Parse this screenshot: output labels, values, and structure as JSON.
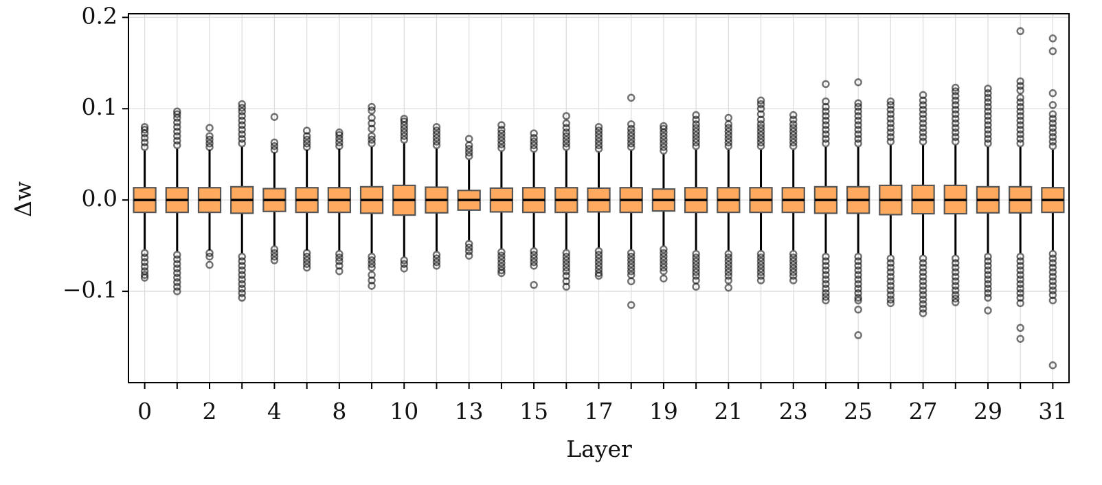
{
  "chart_data": {
    "type": "box",
    "x_label": "Layer",
    "y_label": "Δw",
    "categories": [
      "0",
      null,
      "2",
      null,
      "4",
      null,
      "8",
      null,
      "10",
      null,
      "13",
      null,
      "15",
      null,
      "17",
      null,
      "19",
      null,
      "21",
      null,
      "23",
      null,
      "25",
      null,
      "27",
      null,
      "29",
      null,
      "31"
    ],
    "ylim": [
      -0.2,
      0.204
    ],
    "yticks": [
      {
        "value": -0.1,
        "label": "−0.1"
      },
      {
        "value": 0,
        "label": "0.0"
      },
      0.1,
      0.2
    ],
    "grid": true,
    "color": "#ffaa5e",
    "edge_color": "#555555",
    "flier_color": "#000000",
    "boxes": [
      {
        "whislo": -0.054,
        "q1": -0.0135,
        "med": 0,
        "q3": 0.0135,
        "whishi": 0.054,
        "fliers": [
          0.058,
          0.063,
          0.068,
          0.073,
          0.077,
          0.08,
          -0.058,
          -0.063,
          -0.068,
          -0.073,
          -0.078,
          -0.082,
          -0.085
        ]
      },
      {
        "whislo": -0.056,
        "q1": -0.0135,
        "med": 0,
        "q3": 0.0135,
        "whishi": 0.056,
        "fliers": [
          0.06,
          0.065,
          0.07,
          0.075,
          0.08,
          0.085,
          0.09,
          0.094,
          0.097,
          -0.06,
          -0.065,
          -0.07,
          -0.075,
          -0.08,
          -0.085,
          -0.09,
          -0.095,
          -0.1
        ]
      },
      {
        "whislo": -0.055,
        "q1": -0.0135,
        "med": 0,
        "q3": 0.0135,
        "whishi": 0.055,
        "fliers": [
          0.058,
          0.062,
          0.066,
          0.07,
          0.079,
          -0.058,
          -0.062,
          -0.071
        ]
      },
      {
        "whislo": -0.058,
        "q1": -0.0145,
        "med": 0,
        "q3": 0.0145,
        "whishi": 0.058,
        "fliers": [
          0.062,
          0.067,
          0.072,
          0.077,
          0.082,
          0.087,
          0.092,
          0.097,
          0.101,
          0.105,
          -0.062,
          -0.067,
          -0.072,
          -0.077,
          -0.082,
          -0.087,
          -0.092,
          -0.097,
          -0.102,
          -0.107
        ]
      },
      {
        "whislo": -0.05,
        "q1": -0.0125,
        "med": 0,
        "q3": 0.0125,
        "whishi": 0.052,
        "fliers": [
          0.055,
          0.059,
          0.063,
          0.091,
          -0.054,
          -0.058,
          -0.062,
          -0.066
        ]
      },
      {
        "whislo": -0.055,
        "q1": -0.0135,
        "med": 0,
        "q3": 0.0135,
        "whishi": 0.055,
        "fliers": [
          0.058,
          0.062,
          0.066,
          0.07,
          0.076,
          -0.058,
          -0.062,
          -0.066,
          -0.07,
          -0.074
        ]
      },
      {
        "whislo": -0.055,
        "q1": -0.0135,
        "med": 0,
        "q3": 0.0135,
        "whishi": 0.056,
        "fliers": [
          0.059,
          0.063,
          0.067,
          0.071,
          0.074,
          -0.059,
          -0.063,
          -0.067,
          -0.072,
          -0.078
        ]
      },
      {
        "whislo": -0.058,
        "q1": -0.0145,
        "med": 0,
        "q3": 0.0145,
        "whishi": 0.058,
        "fliers": [
          0.062,
          0.066,
          0.07,
          0.078,
          0.084,
          0.09,
          0.098,
          0.102,
          -0.062,
          -0.066,
          -0.07,
          -0.074,
          -0.082,
          -0.088,
          -0.094
        ]
      },
      {
        "whislo": -0.062,
        "q1": -0.0165,
        "med": 0,
        "q3": 0.016,
        "whishi": 0.062,
        "fliers": [
          0.066,
          0.07,
          0.074,
          0.078,
          0.082,
          0.086,
          0.089,
          -0.066,
          -0.07,
          -0.075
        ]
      },
      {
        "whislo": -0.056,
        "q1": -0.014,
        "med": 0,
        "q3": 0.014,
        "whishi": 0.056,
        "fliers": [
          0.06,
          0.064,
          0.068,
          0.072,
          0.076,
          0.08,
          -0.06,
          -0.064,
          -0.068,
          -0.072
        ]
      },
      {
        "whislo": -0.044,
        "q1": -0.011,
        "med": 0,
        "q3": 0.0105,
        "whishi": 0.044,
        "fliers": [
          0.048,
          0.052,
          0.056,
          0.06,
          0.067,
          -0.048,
          -0.052,
          -0.056,
          -0.061
        ]
      },
      {
        "whislo": -0.053,
        "q1": -0.013,
        "med": 0,
        "q3": 0.013,
        "whishi": 0.053,
        "fliers": [
          0.057,
          0.061,
          0.065,
          0.069,
          0.073,
          0.077,
          0.082,
          -0.057,
          -0.061,
          -0.065,
          -0.069,
          -0.073,
          -0.077,
          -0.08
        ]
      },
      {
        "whislo": -0.052,
        "q1": -0.0135,
        "med": 0,
        "q3": 0.0135,
        "whishi": 0.052,
        "fliers": [
          0.056,
          0.06,
          0.064,
          0.068,
          0.073,
          -0.056,
          -0.06,
          -0.064,
          -0.068,
          -0.072,
          -0.093
        ]
      },
      {
        "whislo": -0.054,
        "q1": -0.0135,
        "med": 0,
        "q3": 0.0135,
        "whishi": 0.054,
        "fliers": [
          0.058,
          0.062,
          0.066,
          0.07,
          0.074,
          0.079,
          0.084,
          0.092,
          -0.058,
          -0.062,
          -0.066,
          -0.07,
          -0.074,
          -0.078,
          -0.083,
          -0.089,
          -0.095
        ]
      },
      {
        "whislo": -0.052,
        "q1": -0.013,
        "med": 0,
        "q3": 0.013,
        "whishi": 0.052,
        "fliers": [
          0.056,
          0.06,
          0.064,
          0.068,
          0.072,
          0.076,
          0.08,
          -0.056,
          -0.06,
          -0.064,
          -0.068,
          -0.072,
          -0.076,
          -0.08,
          -0.083
        ]
      },
      {
        "whislo": -0.054,
        "q1": -0.0135,
        "med": 0,
        "q3": 0.0135,
        "whishi": 0.054,
        "fliers": [
          0.058,
          0.062,
          0.066,
          0.07,
          0.074,
          0.078,
          0.083,
          0.112,
          -0.058,
          -0.062,
          -0.066,
          -0.07,
          -0.074,
          -0.078,
          -0.082,
          -0.089,
          -0.115
        ]
      },
      {
        "whislo": -0.05,
        "q1": -0.012,
        "med": 0,
        "q3": 0.012,
        "whishi": 0.05,
        "fliers": [
          0.054,
          0.058,
          0.062,
          0.066,
          0.07,
          0.074,
          0.078,
          0.081,
          -0.054,
          -0.058,
          -0.062,
          -0.066,
          -0.07,
          -0.074,
          -0.078,
          -0.086
        ]
      },
      {
        "whislo": -0.055,
        "q1": -0.0135,
        "med": 0,
        "q3": 0.0135,
        "whishi": 0.055,
        "fliers": [
          0.059,
          0.063,
          0.067,
          0.071,
          0.075,
          0.079,
          0.083,
          0.088,
          0.093,
          -0.059,
          -0.063,
          -0.067,
          -0.071,
          -0.075,
          -0.079,
          -0.083,
          -0.088,
          -0.095
        ]
      },
      {
        "whislo": -0.055,
        "q1": -0.0135,
        "med": 0,
        "q3": 0.0135,
        "whishi": 0.055,
        "fliers": [
          0.059,
          0.063,
          0.067,
          0.071,
          0.075,
          0.079,
          0.083,
          0.09,
          -0.059,
          -0.063,
          -0.067,
          -0.071,
          -0.075,
          -0.079,
          -0.083,
          -0.088,
          -0.096
        ]
      },
      {
        "whislo": -0.055,
        "q1": -0.0135,
        "med": 0,
        "q3": 0.0135,
        "whishi": 0.055,
        "fliers": [
          0.059,
          0.063,
          0.067,
          0.071,
          0.075,
          0.079,
          0.083,
          0.088,
          0.094,
          0.1,
          0.105,
          0.109,
          -0.059,
          -0.063,
          -0.067,
          -0.071,
          -0.075,
          -0.079,
          -0.083,
          -0.088
        ]
      },
      {
        "whislo": -0.055,
        "q1": -0.0135,
        "med": 0,
        "q3": 0.0135,
        "whishi": 0.055,
        "fliers": [
          0.059,
          0.063,
          0.067,
          0.071,
          0.075,
          0.079,
          0.083,
          0.088,
          0.093,
          -0.059,
          -0.063,
          -0.067,
          -0.071,
          -0.075,
          -0.079,
          -0.083,
          -0.088
        ]
      },
      {
        "whislo": -0.058,
        "q1": -0.0145,
        "med": 0,
        "q3": 0.0145,
        "whishi": 0.058,
        "fliers": [
          0.062,
          0.067,
          0.072,
          0.077,
          0.082,
          0.087,
          0.092,
          0.097,
          0.102,
          0.108,
          0.127,
          -0.062,
          -0.067,
          -0.072,
          -0.077,
          -0.082,
          -0.087,
          -0.092,
          -0.097,
          -0.102,
          -0.106,
          -0.11
        ]
      },
      {
        "whislo": -0.058,
        "q1": -0.0145,
        "med": 0,
        "q3": 0.0145,
        "whishi": 0.058,
        "fliers": [
          0.062,
          0.067,
          0.072,
          0.077,
          0.082,
          0.087,
          0.092,
          0.097,
          0.102,
          0.106,
          0.129,
          -0.062,
          -0.067,
          -0.072,
          -0.077,
          -0.082,
          -0.087,
          -0.092,
          -0.097,
          -0.102,
          -0.107,
          -0.11,
          -0.12,
          -0.148
        ]
      },
      {
        "whislo": -0.06,
        "q1": -0.016,
        "med": 0,
        "q3": 0.016,
        "whishi": 0.06,
        "fliers": [
          0.064,
          0.069,
          0.074,
          0.079,
          0.084,
          0.089,
          0.094,
          0.099,
          0.104,
          0.108,
          -0.064,
          -0.069,
          -0.074,
          -0.079,
          -0.084,
          -0.089,
          -0.094,
          -0.099,
          -0.104,
          -0.109,
          -0.113
        ]
      },
      {
        "whislo": -0.06,
        "q1": -0.015,
        "med": 0,
        "q3": 0.016,
        "whishi": 0.06,
        "fliers": [
          0.064,
          0.069,
          0.074,
          0.079,
          0.084,
          0.089,
          0.094,
          0.099,
          0.104,
          0.109,
          0.115,
          -0.064,
          -0.069,
          -0.074,
          -0.079,
          -0.084,
          -0.089,
          -0.094,
          -0.099,
          -0.104,
          -0.109,
          -0.114,
          -0.119,
          -0.124
        ]
      },
      {
        "whislo": -0.06,
        "q1": -0.015,
        "med": 0,
        "q3": 0.016,
        "whishi": 0.06,
        "fliers": [
          0.064,
          0.069,
          0.074,
          0.079,
          0.084,
          0.089,
          0.094,
          0.099,
          0.104,
          0.109,
          0.114,
          0.119,
          0.123,
          -0.064,
          -0.069,
          -0.074,
          -0.079,
          -0.084,
          -0.089,
          -0.094,
          -0.099,
          -0.104,
          -0.108,
          -0.112
        ]
      },
      {
        "whislo": -0.058,
        "q1": -0.014,
        "med": 0,
        "q3": 0.0145,
        "whishi": 0.058,
        "fliers": [
          0.062,
          0.067,
          0.072,
          0.077,
          0.082,
          0.087,
          0.092,
          0.097,
          0.102,
          0.107,
          0.112,
          0.117,
          0.122,
          -0.062,
          -0.067,
          -0.072,
          -0.077,
          -0.082,
          -0.087,
          -0.092,
          -0.097,
          -0.102,
          -0.107,
          -0.121
        ]
      },
      {
        "whislo": -0.058,
        "q1": -0.014,
        "med": 0,
        "q3": 0.0145,
        "whishi": 0.058,
        "fliers": [
          0.062,
          0.067,
          0.072,
          0.077,
          0.082,
          0.087,
          0.092,
          0.097,
          0.102,
          0.107,
          0.112,
          0.12,
          0.125,
          0.13,
          0.185,
          -0.062,
          -0.067,
          -0.072,
          -0.077,
          -0.082,
          -0.087,
          -0.092,
          -0.097,
          -0.102,
          -0.107,
          -0.113,
          -0.14,
          -0.152
        ]
      },
      {
        "whislo": -0.055,
        "q1": -0.0135,
        "med": 0,
        "q3": 0.0135,
        "whishi": 0.055,
        "fliers": [
          0.059,
          0.064,
          0.069,
          0.074,
          0.079,
          0.084,
          0.089,
          0.094,
          0.104,
          0.117,
          0.163,
          0.177,
          -0.059,
          -0.064,
          -0.069,
          -0.074,
          -0.079,
          -0.084,
          -0.089,
          -0.094,
          -0.099,
          -0.104,
          -0.11,
          -0.181
        ]
      }
    ]
  }
}
